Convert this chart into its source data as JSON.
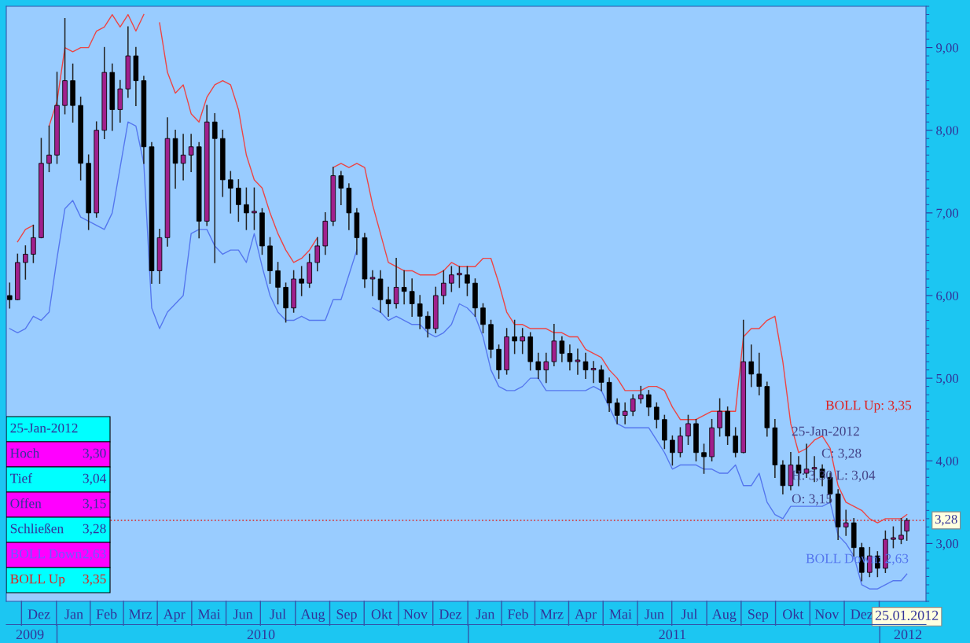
{
  "chart_data": {
    "type": "candlestick",
    "x": [
      "2009-11-20",
      "2009-11-27",
      "2009-12-04",
      "2009-12-11",
      "2009-12-18",
      "2009-12-25",
      "2010-01-01",
      "2010-01-08",
      "2010-01-15",
      "2010-01-22",
      "2010-01-29",
      "2010-02-05",
      "2010-02-12",
      "2010-02-19",
      "2010-02-26",
      "2010-03-05",
      "2010-03-12",
      "2010-03-19",
      "2010-03-26",
      "2010-04-02",
      "2010-04-09",
      "2010-04-16",
      "2010-04-23",
      "2010-04-30",
      "2010-05-07",
      "2010-05-14",
      "2010-05-21",
      "2010-05-28",
      "2010-06-04",
      "2010-06-11",
      "2010-06-18",
      "2010-06-25",
      "2010-07-02",
      "2010-07-09",
      "2010-07-16",
      "2010-07-23",
      "2010-07-30",
      "2010-08-06",
      "2010-08-13",
      "2010-08-20",
      "2010-08-27",
      "2010-09-03",
      "2010-09-10",
      "2010-09-17",
      "2010-09-24",
      "2010-10-01",
      "2010-10-08",
      "2010-10-15",
      "2010-10-22",
      "2010-10-29",
      "2010-11-05",
      "2010-11-12",
      "2010-11-19",
      "2010-11-26",
      "2010-12-03",
      "2010-12-10",
      "2010-12-17",
      "2010-12-24",
      "2010-12-31",
      "2011-01-07",
      "2011-01-14",
      "2011-01-21",
      "2011-01-28",
      "2011-02-04",
      "2011-02-11",
      "2011-02-18",
      "2011-02-25",
      "2011-03-04",
      "2011-03-11",
      "2011-03-18",
      "2011-03-25",
      "2011-04-01",
      "2011-04-08",
      "2011-04-15",
      "2011-04-22",
      "2011-04-29",
      "2011-05-06",
      "2011-05-13",
      "2011-05-20",
      "2011-05-27",
      "2011-06-03",
      "2011-06-10",
      "2011-06-17",
      "2011-06-24",
      "2011-07-01",
      "2011-07-08",
      "2011-07-15",
      "2011-07-22",
      "2011-07-29",
      "2011-08-05",
      "2011-08-12",
      "2011-08-19",
      "2011-08-26",
      "2011-09-02",
      "2011-09-09",
      "2011-09-16",
      "2011-09-23",
      "2011-09-30",
      "2011-10-07",
      "2011-10-14",
      "2011-10-21",
      "2011-10-28",
      "2011-11-04",
      "2011-11-11",
      "2011-11-18",
      "2011-11-25",
      "2011-12-02",
      "2011-12-09",
      "2011-12-16",
      "2011-12-23",
      "2011-12-30",
      "2012-01-06",
      "2012-01-13",
      "2012-01-20",
      "2012-01-25"
    ],
    "ohlc": [
      [
        6.0,
        6.15,
        5.85,
        5.95
      ],
      [
        5.95,
        6.5,
        5.95,
        6.4
      ],
      [
        6.4,
        6.6,
        6.2,
        6.5
      ],
      [
        6.5,
        6.85,
        6.4,
        6.7
      ],
      [
        6.7,
        7.9,
        6.7,
        7.6
      ],
      [
        7.6,
        8.05,
        7.5,
        7.7
      ],
      [
        7.7,
        8.7,
        7.6,
        8.3
      ],
      [
        8.3,
        9.35,
        8.2,
        8.6
      ],
      [
        8.6,
        8.8,
        8.1,
        8.3
      ],
      [
        8.3,
        8.4,
        7.4,
        7.6
      ],
      [
        7.6,
        7.7,
        6.8,
        7.0
      ],
      [
        7.0,
        8.1,
        6.95,
        8.0
      ],
      [
        8.0,
        9.0,
        7.9,
        8.7
      ],
      [
        8.7,
        8.8,
        8.0,
        8.25
      ],
      [
        8.25,
        8.6,
        8.1,
        8.5
      ],
      [
        8.5,
        9.25,
        8.4,
        8.9
      ],
      [
        8.9,
        9.0,
        8.3,
        8.6
      ],
      [
        8.6,
        8.65,
        7.6,
        7.8
      ],
      [
        7.8,
        7.85,
        6.15,
        6.3
      ],
      [
        6.3,
        6.8,
        6.15,
        6.7
      ],
      [
        6.7,
        8.15,
        6.6,
        7.9
      ],
      [
        7.9,
        8.0,
        7.3,
        7.6
      ],
      [
        7.6,
        7.95,
        7.4,
        7.7
      ],
      [
        7.7,
        7.95,
        7.5,
        7.8
      ],
      [
        7.8,
        7.85,
        6.7,
        6.9
      ],
      [
        6.9,
        8.3,
        6.85,
        8.1
      ],
      [
        8.1,
        8.2,
        6.4,
        7.9
      ],
      [
        7.9,
        8.0,
        7.2,
        7.4
      ],
      [
        7.4,
        7.5,
        7.0,
        7.3
      ],
      [
        7.3,
        7.4,
        6.9,
        7.1
      ],
      [
        7.1,
        7.3,
        6.8,
        7.0
      ],
      [
        7.0,
        7.3,
        6.8,
        7.0
      ],
      [
        7.0,
        7.05,
        6.5,
        6.6
      ],
      [
        6.6,
        6.7,
        6.15,
        6.3
      ],
      [
        6.3,
        6.4,
        5.9,
        6.1
      ],
      [
        6.1,
        6.15,
        5.68,
        5.85
      ],
      [
        5.85,
        6.3,
        5.8,
        6.2
      ],
      [
        6.2,
        6.35,
        6.0,
        6.15
      ],
      [
        6.15,
        6.5,
        6.1,
        6.4
      ],
      [
        6.4,
        6.7,
        6.3,
        6.6
      ],
      [
        6.6,
        7.0,
        6.5,
        6.9
      ],
      [
        6.9,
        7.55,
        6.85,
        7.45
      ],
      [
        7.45,
        7.5,
        7.1,
        7.3
      ],
      [
        7.3,
        7.35,
        6.8,
        7.0
      ],
      [
        7.0,
        7.05,
        6.5,
        6.7
      ],
      [
        6.7,
        6.75,
        6.1,
        6.2
      ],
      [
        6.2,
        6.3,
        6.0,
        6.2
      ],
      [
        6.2,
        6.3,
        5.8,
        5.95
      ],
      [
        5.95,
        6.1,
        5.75,
        5.9
      ],
      [
        5.9,
        6.45,
        5.85,
        6.1
      ],
      [
        6.1,
        6.3,
        5.9,
        6.05
      ],
      [
        6.05,
        6.2,
        5.75,
        5.9
      ],
      [
        5.9,
        6.0,
        5.6,
        5.75
      ],
      [
        5.75,
        5.8,
        5.5,
        5.6
      ],
      [
        5.6,
        6.1,
        5.55,
        6.0
      ],
      [
        6.0,
        6.3,
        5.9,
        6.15
      ],
      [
        6.15,
        6.35,
        6.05,
        6.25
      ],
      [
        6.25,
        6.35,
        6.1,
        6.25
      ],
      [
        6.25,
        6.35,
        6.0,
        6.15
      ],
      [
        6.15,
        6.2,
        5.75,
        5.85
      ],
      [
        5.85,
        5.9,
        5.55,
        5.65
      ],
      [
        5.65,
        5.7,
        5.25,
        5.35
      ],
      [
        5.35,
        5.4,
        5.0,
        5.1
      ],
      [
        5.1,
        5.6,
        5.05,
        5.5
      ],
      [
        5.5,
        5.7,
        5.3,
        5.45
      ],
      [
        5.45,
        5.6,
        5.3,
        5.5
      ],
      [
        5.5,
        5.55,
        5.1,
        5.2
      ],
      [
        5.2,
        5.3,
        5.0,
        5.1
      ],
      [
        5.1,
        5.3,
        4.95,
        5.2
      ],
      [
        5.2,
        5.65,
        5.15,
        5.45
      ],
      [
        5.45,
        5.5,
        5.2,
        5.3
      ],
      [
        5.3,
        5.4,
        5.1,
        5.2
      ],
      [
        5.2,
        5.35,
        5.05,
        5.2
      ],
      [
        5.2,
        5.3,
        5.0,
        5.1
      ],
      [
        5.1,
        5.2,
        4.95,
        5.1
      ],
      [
        5.1,
        5.15,
        4.85,
        4.95
      ],
      [
        4.95,
        5.0,
        4.6,
        4.7
      ],
      [
        4.7,
        4.75,
        4.45,
        4.55
      ],
      [
        4.55,
        4.7,
        4.45,
        4.6
      ],
      [
        4.6,
        4.8,
        4.55,
        4.75
      ],
      [
        4.75,
        4.9,
        4.7,
        4.8
      ],
      [
        4.8,
        4.85,
        4.55,
        4.65
      ],
      [
        4.65,
        4.7,
        4.4,
        4.5
      ],
      [
        4.5,
        4.55,
        4.15,
        4.25
      ],
      [
        4.25,
        4.3,
        3.95,
        4.1
      ],
      [
        4.1,
        4.4,
        4.05,
        4.3
      ],
      [
        4.3,
        4.55,
        4.2,
        4.45
      ],
      [
        4.45,
        4.5,
        4.0,
        4.1
      ],
      [
        4.1,
        4.2,
        3.85,
        4.05
      ],
      [
        4.05,
        4.5,
        4.0,
        4.4
      ],
      [
        4.4,
        4.75,
        4.3,
        4.6
      ],
      [
        4.6,
        4.65,
        4.2,
        4.3
      ],
      [
        4.3,
        4.4,
        4.05,
        4.1
      ],
      [
        4.1,
        5.7,
        4.1,
        5.2
      ],
      [
        5.2,
        5.4,
        4.9,
        5.05
      ],
      [
        5.05,
        5.3,
        4.8,
        4.9
      ],
      [
        4.9,
        4.95,
        4.3,
        4.4
      ],
      [
        4.4,
        4.5,
        3.8,
        3.95
      ],
      [
        3.95,
        4.0,
        3.6,
        3.7
      ],
      [
        3.7,
        4.1,
        3.65,
        3.95
      ],
      [
        3.95,
        4.05,
        3.7,
        3.85
      ],
      [
        3.85,
        4.2,
        3.8,
        3.9
      ],
      [
        3.9,
        4.05,
        3.75,
        3.9
      ],
      [
        3.9,
        3.95,
        3.7,
        3.8
      ],
      [
        3.8,
        3.85,
        3.5,
        3.6
      ],
      [
        3.6,
        3.65,
        3.05,
        3.2
      ],
      [
        3.2,
        3.4,
        3.1,
        3.25
      ],
      [
        3.25,
        3.3,
        2.85,
        2.95
      ],
      [
        2.95,
        3.0,
        2.55,
        2.65
      ],
      [
        2.65,
        2.95,
        2.6,
        2.85
      ],
      [
        2.85,
        2.9,
        2.6,
        2.7
      ],
      [
        2.7,
        3.15,
        2.65,
        3.05
      ],
      [
        3.05,
        3.2,
        2.95,
        3.05
      ],
      [
        3.05,
        3.3,
        3.0,
        3.1
      ],
      [
        3.15,
        3.3,
        3.04,
        3.28
      ]
    ],
    "series": [
      {
        "type": "line",
        "color": "#ee4444",
        "values": [
          null,
          6.65,
          6.8,
          6.85,
          null,
          8.05,
          8.35,
          9.0,
          8.95,
          9.0,
          9.0,
          9.2,
          9.25,
          9.4,
          9.25,
          9.4,
          9.2,
          9.4,
          null,
          9.3,
          8.7,
          8.45,
          8.55,
          8.2,
          8.1,
          8.4,
          8.55,
          8.6,
          8.55,
          8.25,
          7.7,
          7.4,
          7.3,
          7.0,
          6.75,
          6.55,
          6.4,
          6.45,
          6.55,
          6.7,
          null,
          7.55,
          7.6,
          7.55,
          7.6,
          7.55,
          7.1,
          6.75,
          6.4,
          6.35,
          6.3,
          6.3,
          6.25,
          6.25,
          6.25,
          6.3,
          6.4,
          6.35,
          6.35,
          6.35,
          6.45,
          6.45,
          6.15,
          5.8,
          5.65,
          5.65,
          5.6,
          5.6,
          5.6,
          5.55,
          5.55,
          5.5,
          5.5,
          5.35,
          5.3,
          5.25,
          5.1,
          5.0,
          4.85,
          4.85,
          4.85,
          4.9,
          4.9,
          4.85,
          4.65,
          4.5,
          4.5,
          4.5,
          4.55,
          4.6,
          4.6,
          4.6,
          4.6,
          5.5,
          5.6,
          5.6,
          5.7,
          5.75,
          5.2,
          4.45,
          4.1,
          4.15,
          4.25,
          4.3,
          4.15,
          3.7,
          3.5,
          3.45,
          3.4,
          3.3,
          3.25,
          3.3,
          3.3,
          3.3,
          3.35
        ]
      },
      {
        "type": "line",
        "color": "#5577ee",
        "values": [
          5.6,
          5.55,
          5.6,
          5.75,
          5.7,
          5.8,
          6.45,
          7.05,
          7.15,
          6.95,
          6.9,
          6.85,
          6.8,
          7.0,
          7.55,
          8.1,
          8.05,
          7.6,
          5.85,
          5.6,
          5.8,
          5.9,
          6.0,
          6.75,
          6.8,
          6.8,
          6.6,
          6.5,
          6.55,
          6.55,
          6.4,
          6.75,
          6.35,
          6.0,
          5.8,
          5.7,
          5.7,
          5.75,
          5.7,
          5.7,
          5.7,
          5.95,
          5.95,
          6.25,
          6.55,
          null,
          5.85,
          5.8,
          5.7,
          5.75,
          5.7,
          5.65,
          5.65,
          5.55,
          5.5,
          5.55,
          5.65,
          5.9,
          5.85,
          5.75,
          5.5,
          5.1,
          4.9,
          4.85,
          4.85,
          4.9,
          5.0,
          5.0,
          4.85,
          4.85,
          4.85,
          4.85,
          4.85,
          4.85,
          4.9,
          4.85,
          4.65,
          4.45,
          4.4,
          4.4,
          4.4,
          4.4,
          4.25,
          4.1,
          3.9,
          3.95,
          3.95,
          3.95,
          3.9,
          3.9,
          3.85,
          3.85,
          3.95,
          3.7,
          3.7,
          3.85,
          3.5,
          3.35,
          3.3,
          3.45,
          3.45,
          3.45,
          3.45,
          3.45,
          3.5,
          3.1,
          3.0,
          2.85,
          2.5,
          2.45,
          2.45,
          2.5,
          2.55,
          2.55,
          2.63
        ]
      }
    ],
    "xlim": [
      "2009-11-17",
      "2012-02-11"
    ],
    "xticks": [
      {
        "value": "2009-12-16",
        "label": "Dez"
      },
      {
        "value": "2010-01-16",
        "label": "Jan"
      },
      {
        "value": "2010-02-14",
        "label": "Feb"
      },
      {
        "value": "2010-03-16",
        "label": "Mrz"
      },
      {
        "value": "2010-04-15",
        "label": "Apr"
      },
      {
        "value": "2010-05-16",
        "label": "Mai"
      },
      {
        "value": "2010-06-15",
        "label": "Jun"
      },
      {
        "value": "2010-07-16",
        "label": "Jul"
      },
      {
        "value": "2010-08-16",
        "label": "Aug"
      },
      {
        "value": "2010-09-15",
        "label": "Sep"
      },
      {
        "value": "2010-10-16",
        "label": "Okt"
      },
      {
        "value": "2010-11-15",
        "label": "Nov"
      },
      {
        "value": "2010-12-16",
        "label": "Dez"
      },
      {
        "value": "2011-01-16",
        "label": "Jan"
      },
      {
        "value": "2011-02-14",
        "label": "Feb"
      },
      {
        "value": "2011-03-16",
        "label": "Mrz"
      },
      {
        "value": "2011-04-15",
        "label": "Apr"
      },
      {
        "value": "2011-05-16",
        "label": "Mai"
      },
      {
        "value": "2011-06-15",
        "label": "Jun"
      },
      {
        "value": "2011-07-16",
        "label": "Jul"
      },
      {
        "value": "2011-08-16",
        "label": "Aug"
      },
      {
        "value": "2011-09-15",
        "label": "Sep"
      },
      {
        "value": "2011-10-16",
        "label": "Okt"
      },
      {
        "value": "2011-11-15",
        "label": "Nov"
      },
      {
        "value": "2011-12-16",
        "label": "Dez"
      }
    ],
    "x2lim": [
      "2009-11-17",
      "2012-02-11"
    ],
    "x2ticks": [
      {
        "value": "2009-12-08",
        "label": "2009"
      },
      {
        "value": "2010-07-01",
        "label": "2010"
      },
      {
        "value": "2011-07-01",
        "label": "2011"
      },
      {
        "value": "2012-01-26",
        "label": "2012"
      }
    ],
    "ylim": [
      2.3,
      9.5
    ],
    "yticks": [
      {
        "value": 3,
        "label": "3,00"
      },
      {
        "value": 4,
        "label": "4,00"
      },
      {
        "value": 5,
        "label": "5,00"
      },
      {
        "value": 6,
        "label": "6,00"
      },
      {
        "value": 7,
        "label": "7,00"
      },
      {
        "value": 8,
        "label": "8,00"
      },
      {
        "value": 9,
        "label": "9,00"
      }
    ],
    "ref_lines": [
      {
        "axis": "y",
        "value": 3.28,
        "label": "3,28",
        "color": "#dd2222",
        "line_style": "dotted"
      }
    ],
    "annotations": [
      "25-Jan-2012",
      "Hoch",
      "3,30",
      "Tief",
      "3,04",
      "Offen",
      "3,15",
      "Schließen",
      "3,28",
      "BOLL Down",
      "2,63",
      "BOLL Up",
      "3,35",
      "BOLL Up: 3,35",
      "25-Jan-2012",
      "C: 3,28",
      "H: 3,30 L: 3,04",
      "O: 3,15",
      "BOLL Down: 2,63",
      "25.01.2012"
    ],
    "grid": false,
    "legend": false
  }
}
